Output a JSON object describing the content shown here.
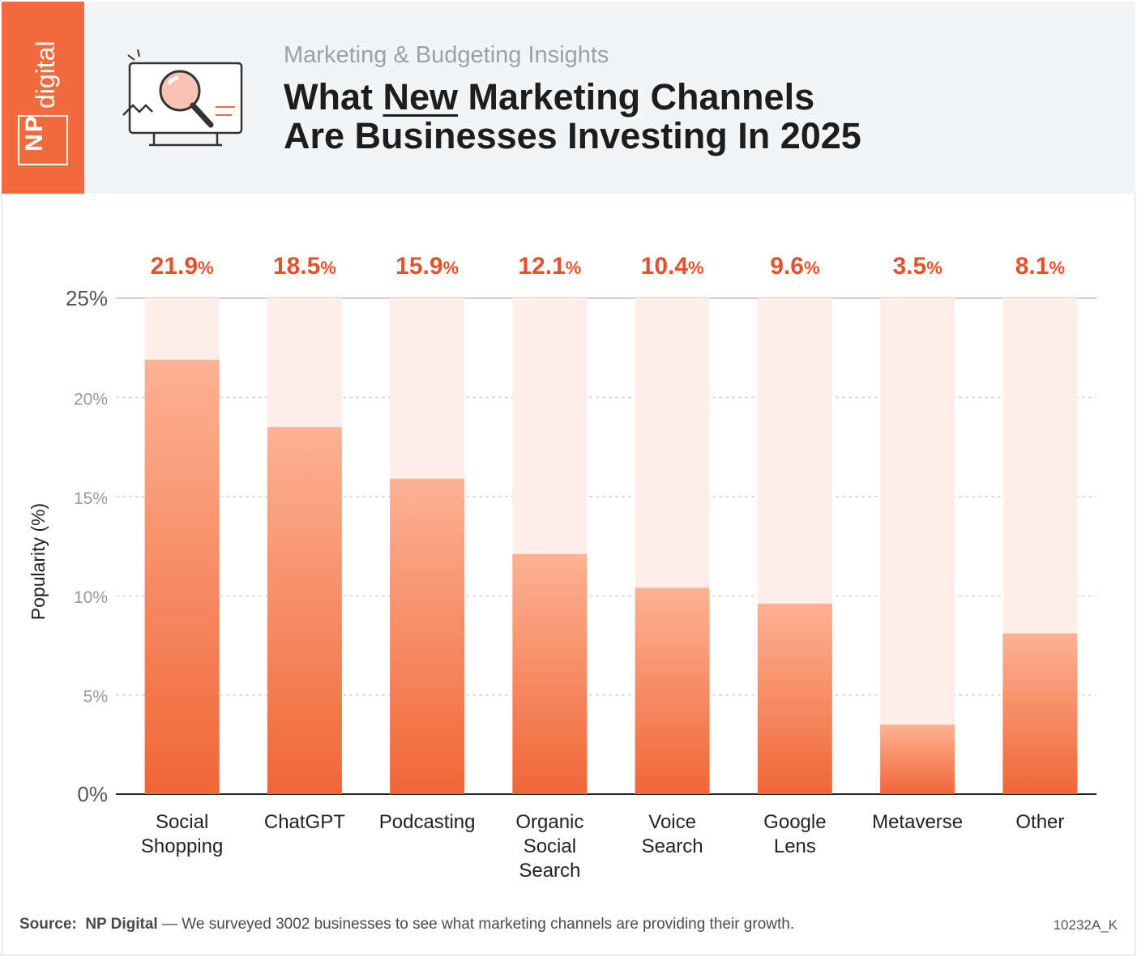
{
  "header": {
    "logo_np": "NP",
    "logo_digital": "digital",
    "subtitle": "Marketing & Budgeting Insights",
    "title_line1_pre": "What ",
    "title_line1_u": "New",
    "title_line1_post": " Marketing Channels",
    "title_line2": "Are Businesses Investing In 2025"
  },
  "chart_data": {
    "type": "bar",
    "categories": [
      [
        "Social",
        "Shopping"
      ],
      [
        "ChatGPT"
      ],
      [
        "Podcasting"
      ],
      [
        "Organic",
        "Social",
        "Search"
      ],
      [
        "Voice",
        "Search"
      ],
      [
        "Google",
        "Lens"
      ],
      [
        "Metaverse"
      ],
      [
        "Other"
      ]
    ],
    "values": [
      21.9,
      18.5,
      15.9,
      12.1,
      10.4,
      9.6,
      3.5,
      8.1
    ],
    "value_labels": [
      "21.9",
      "18.5",
      "15.9",
      "12.1",
      "10.4",
      "9.6",
      "3.5",
      "8.1"
    ],
    "value_suffix": "%",
    "ylabel": "Popularity (%)",
    "yticks": [
      "0%",
      "5%",
      "10%",
      "15%",
      "20%",
      "25%"
    ],
    "ylim": [
      0,
      25
    ],
    "grid": true,
    "colors": {
      "bar_top": "#fdb294",
      "bar_bottom": "#f06636",
      "track": "#fdeee9",
      "label": "#e5522a"
    }
  },
  "footer": {
    "source_label": "Source:",
    "source_name": "NP Digital",
    "source_text": " — We surveyed 3002 businesses to see what marketing channels are providing their growth.",
    "code": "10232A_K"
  }
}
